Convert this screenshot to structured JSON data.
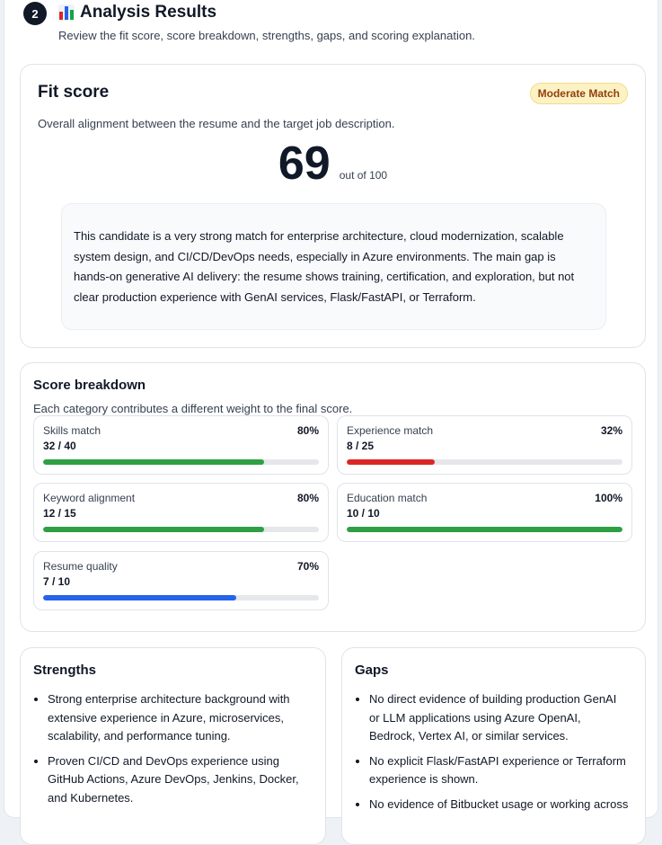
{
  "section": {
    "step_number": "2",
    "title": "Analysis Results",
    "icon": "bar-chart-icon",
    "subtitle": "Review the fit score, score breakdown, strengths, gaps, and scoring explanation."
  },
  "fit_score": {
    "title": "Fit score",
    "badge": "Moderate Match",
    "description": "Overall alignment between the resume and the target job description.",
    "score": "69",
    "out_of": "out of 100",
    "summary": "This candidate is a very strong match for enterprise architecture, cloud modernization, scalable system design, and CI/CD/DevOps needs, especially in Azure environments. The main gap is hands-on generative AI delivery: the resume shows training, certification, and exploration, but not clear production experience with GenAI services, Flask/FastAPI, or Terraform."
  },
  "breakdown": {
    "title": "Score breakdown",
    "description": "Each category contributes a different weight to the final score.",
    "items": [
      {
        "label": "Skills match",
        "score": "32 / 40",
        "percent_label": "80%",
        "percent": 80,
        "color": "#2ea043"
      },
      {
        "label": "Experience match",
        "score": "8 / 25",
        "percent_label": "32%",
        "percent": 32,
        "color": "#dc2626"
      },
      {
        "label": "Keyword alignment",
        "score": "12 / 15",
        "percent_label": "80%",
        "percent": 80,
        "color": "#2ea043"
      },
      {
        "label": "Education match",
        "score": "10 / 10",
        "percent_label": "100%",
        "percent": 100,
        "color": "#2ea043"
      },
      {
        "label": "Resume quality",
        "score": "7 / 10",
        "percent_label": "70%",
        "percent": 70,
        "color": "#2563eb"
      }
    ]
  },
  "strengths": {
    "title": "Strengths",
    "items": [
      "Strong enterprise architecture background with extensive experience in Azure, microservices, scalability, and performance tuning.",
      "Proven CI/CD and DevOps experience using GitHub Actions, Azure DevOps, Jenkins, Docker, and Kubernetes."
    ]
  },
  "gaps": {
    "title": "Gaps",
    "items": [
      "No direct evidence of building production GenAI or LLM applications using Azure OpenAI, Bedrock, Vertex AI, or similar services.",
      "No explicit Flask/FastAPI experience or Terraform experience is shown.",
      "No evidence of Bitbucket usage or working across"
    ]
  }
}
